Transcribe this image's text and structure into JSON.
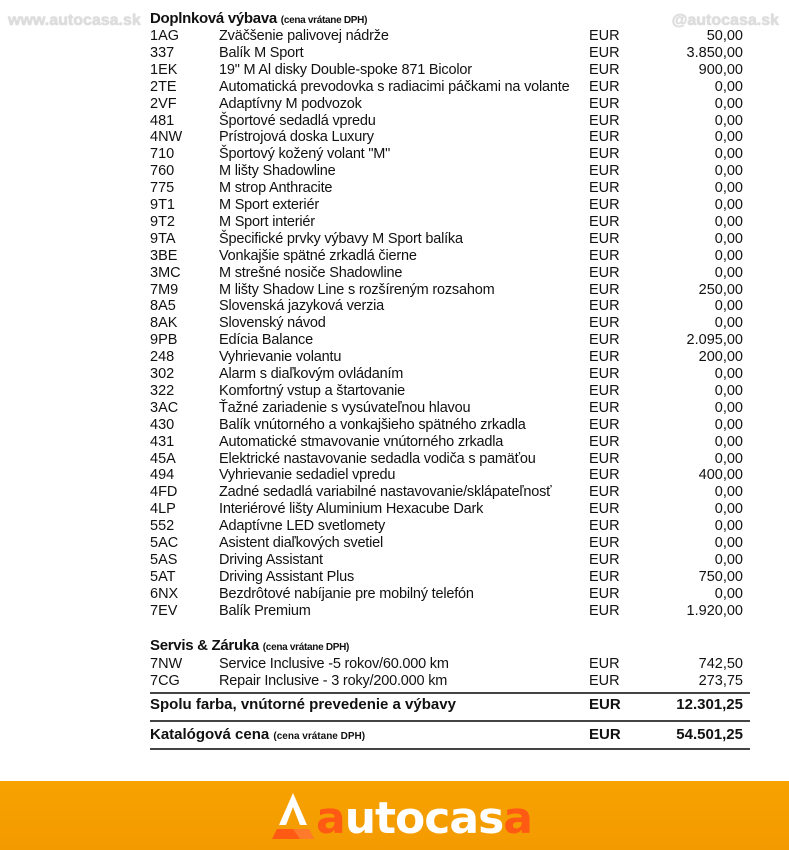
{
  "watermarks": {
    "left": "www.autocasa.sk",
    "right": "@autocasa.sk"
  },
  "options": {
    "title": "Doplnková výbava",
    "note": "(cena vrátane DPH)",
    "items": [
      [
        "1AG",
        "Zväčšenie palivovej nádrže",
        "EUR",
        "50,00"
      ],
      [
        "337",
        "Balík M Sport",
        "EUR",
        "3.850,00"
      ],
      [
        "1EK",
        "19\" M Al disky Double-spoke 871 Bicolor",
        "EUR",
        "900,00"
      ],
      [
        "2TE",
        "Automatická prevodovka s radiacimi páčkami na volante",
        "EUR",
        "0,00"
      ],
      [
        "2VF",
        "Adaptívny M podvozok",
        "EUR",
        "0,00"
      ],
      [
        "481",
        "Športové sedadlá vpredu",
        "EUR",
        "0,00"
      ],
      [
        "4NW",
        "Prístrojová doska Luxury",
        "EUR",
        "0,00"
      ],
      [
        "710",
        "Športový kožený volant \"M\"",
        "EUR",
        "0,00"
      ],
      [
        "760",
        "M lišty Shadowline",
        "EUR",
        "0,00"
      ],
      [
        "775",
        "M strop Anthracite",
        "EUR",
        "0,00"
      ],
      [
        "9T1",
        "M Sport exteriér",
        "EUR",
        "0,00"
      ],
      [
        "9T2",
        "M Sport interiér",
        "EUR",
        "0,00"
      ],
      [
        "9TA",
        "Špecifické prvky výbavy M Sport balíka",
        "EUR",
        "0,00"
      ],
      [
        "3BE",
        "Vonkajšie spätné zrkadlá čierne",
        "EUR",
        "0,00"
      ],
      [
        "3MC",
        "M strešné nosiče Shadowline",
        "EUR",
        "0,00"
      ],
      [
        "7M9",
        "M lišty Shadow Line s rozšíreným rozsahom",
        "EUR",
        "250,00"
      ],
      [
        "8A5",
        "Slovenská jazyková verzia",
        "EUR",
        "0,00"
      ],
      [
        "8AK",
        "Slovenský návod",
        "EUR",
        "0,00"
      ],
      [
        "9PB",
        "Edícia Balance",
        "EUR",
        "2.095,00"
      ],
      [
        "248",
        "Vyhrievanie volantu",
        "EUR",
        "200,00"
      ],
      [
        "302",
        "Alarm s diaľkovým ovládaním",
        "EUR",
        "0,00"
      ],
      [
        "322",
        "Komfortný vstup a štartovanie",
        "EUR",
        "0,00"
      ],
      [
        "3AC",
        "Ťažné zariadenie s vysúvateľnou hlavou",
        "EUR",
        "0,00"
      ],
      [
        "430",
        "Balík vnútorného a vonkajšieho spätného zrkadla",
        "EUR",
        "0,00"
      ],
      [
        "431",
        "Automatické stmavovanie vnútorného zrkadla",
        "EUR",
        "0,00"
      ],
      [
        "45A",
        "Elektrické nastavovanie sedadla vodiča s pamäťou",
        "EUR",
        "0,00"
      ],
      [
        "494",
        "Vyhrievanie sedadiel vpredu",
        "EUR",
        "400,00"
      ],
      [
        "4FD",
        "Zadné sedadlá variabilné nastavovanie/sklápateľnosť",
        "EUR",
        "0,00"
      ],
      [
        "4LP",
        "Interiérové lišty Aluminium Hexacube Dark",
        "EUR",
        "0,00"
      ],
      [
        "552",
        "Adaptívne LED svetlomety",
        "EUR",
        "0,00"
      ],
      [
        "5AC",
        "Asistent diaľkových svetiel",
        "EUR",
        "0,00"
      ],
      [
        "5AS",
        "Driving Assistant",
        "EUR",
        "0,00"
      ],
      [
        "5AT",
        "Driving Assistant Plus",
        "EUR",
        "750,00"
      ],
      [
        "6NX",
        "Bezdrôtové nabíjanie pre mobilný telefón",
        "EUR",
        "0,00"
      ],
      [
        "7EV",
        "Balík Premium",
        "EUR",
        "1.920,00"
      ]
    ]
  },
  "service": {
    "title": "Servis & Záruka",
    "note": "(cena vrátane DPH)",
    "items": [
      [
        "7NW",
        "Service Inclusive -5 rokov/60.000 km",
        "EUR",
        "742,50"
      ],
      [
        "7CG",
        "Repair Inclusive - 3 roky/200.000 km",
        "EUR",
        "273,75"
      ]
    ]
  },
  "totals": {
    "subtotal": {
      "label": "Spolu farba, vnútorné prevedenie a výbavy",
      "currency": "EUR",
      "value": "12.301,25"
    },
    "catalog": {
      "label": "Katalógová cena",
      "note": "(cena vrátane DPH)",
      "currency": "EUR",
      "value": "54.501,25"
    }
  },
  "footer": {
    "logo": {
      "first": "a",
      "middle": "utocas",
      "last": "a"
    },
    "brand_color": "#f7a200",
    "accent_color": "#ff5a14"
  }
}
